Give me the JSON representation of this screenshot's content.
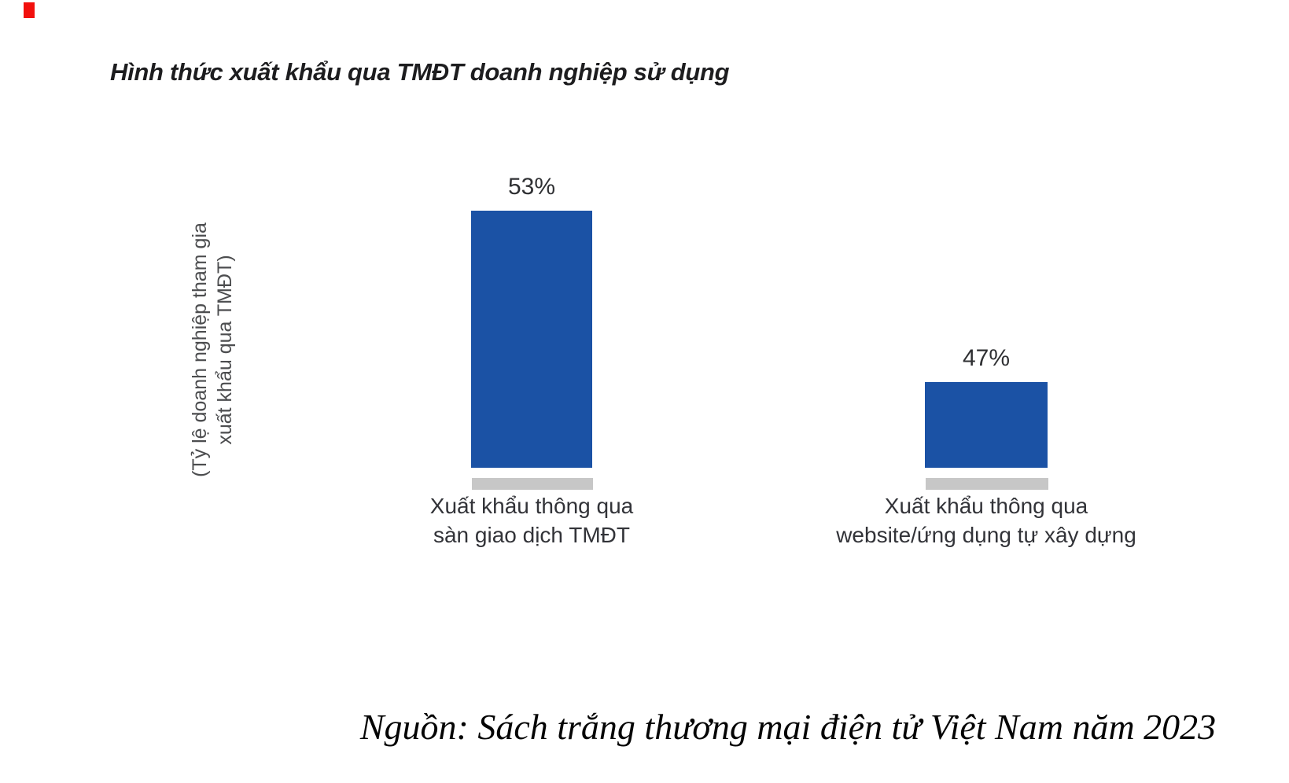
{
  "chart_data": {
    "type": "bar",
    "title": "Hình thức xuất khẩu qua TMĐT doanh nghiệp sử dụng",
    "ylabel": "(Tỷ lệ doanh nghiệp tham gia xuất khẩu qua TMĐT)",
    "ylabel_line1": "(Tỷ lệ doanh nghiệp tham gia",
    "ylabel_line2": "xuất khẩu qua TMĐT)",
    "categories": [
      "Xuất khẩu thông qua sàn giao dịch TMĐT",
      "Xuất khẩu thông qua website/ứng dụng tự xây dựng"
    ],
    "values": [
      53,
      47
    ],
    "xlabel": "",
    "grid": false,
    "legend_position": "none",
    "bar_color": "#1b52a5",
    "pedestal_color": "#c7c7c7",
    "source": "Nguồn: Sách trắng thương mại điện tử Việt Nam năm 2023"
  },
  "bars": [
    {
      "value_label": "53%",
      "label_line1": "Xuất khẩu thông qua",
      "label_line2": "sàn giao dịch TMĐT"
    },
    {
      "value_label": "47%",
      "label_line1": "Xuất khẩu thông qua",
      "label_line2": "website/ứng dụng tự xây dựng"
    }
  ]
}
